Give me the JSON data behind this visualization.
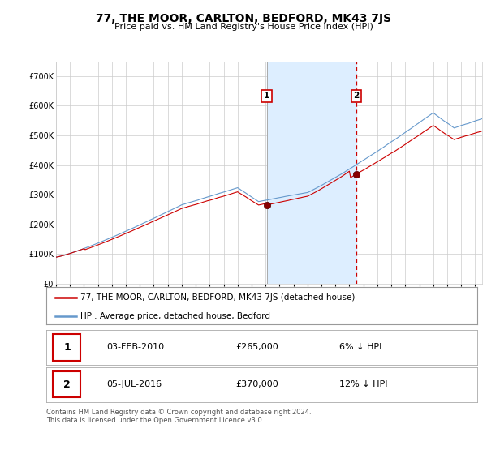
{
  "title": "77, THE MOOR, CARLTON, BEDFORD, MK43 7JS",
  "subtitle": "Price paid vs. HM Land Registry's House Price Index (HPI)",
  "legend_label_red": "77, THE MOOR, CARLTON, BEDFORD, MK43 7JS (detached house)",
  "legend_label_blue": "HPI: Average price, detached house, Bedford",
  "transaction1_date": "03-FEB-2010",
  "transaction1_price": 265000,
  "transaction1_pct": "6% ↓ HPI",
  "transaction2_date": "05-JUL-2016",
  "transaction2_price": 370000,
  "transaction2_pct": "12% ↓ HPI",
  "footer": "Contains HM Land Registry data © Crown copyright and database right 2024.\nThis data is licensed under the Open Government Licence v3.0.",
  "red_color": "#cc0000",
  "blue_color": "#6699cc",
  "shade_color": "#ddeeff",
  "grid_color": "#cccccc",
  "ylim": [
    0,
    750000
  ],
  "yticks": [
    0,
    100000,
    200000,
    300000,
    400000,
    500000,
    600000,
    700000
  ],
  "start_year": 1995,
  "end_year": 2025,
  "transaction1_year": 2010.085,
  "transaction2_year": 2016.505,
  "transaction1_value_red": 265000,
  "transaction2_value_red": 370000
}
